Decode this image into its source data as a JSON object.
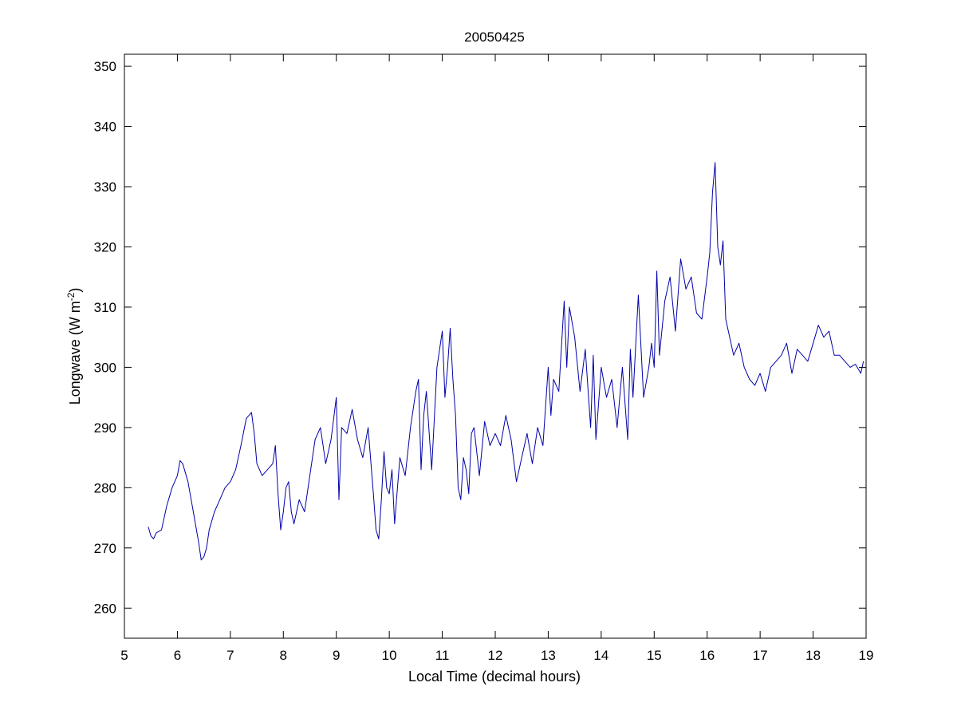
{
  "chart_data": {
    "type": "line",
    "title": "20050425",
    "xlabel": "Local Time (decimal hours)",
    "ylabel": "Longwave (W m",
    "ylabel_superscript": "-2",
    "ylabel_suffix": ")",
    "xlim": [
      5,
      19
    ],
    "ylim": [
      255,
      352
    ],
    "xticks": [
      "5",
      "6",
      "7",
      "8",
      "9",
      "10",
      "11",
      "12",
      "13",
      "14",
      "15",
      "16",
      "17",
      "18",
      "19"
    ],
    "yticks": [
      "260",
      "270",
      "280",
      "290",
      "300",
      "310",
      "320",
      "330",
      "340",
      "350"
    ],
    "grid": false,
    "line_color": "#0000aa",
    "series": [
      {
        "x": [
          5.45,
          5.5,
          5.55,
          5.6,
          5.7,
          5.8,
          5.9,
          6.0,
          6.05,
          6.1,
          6.2,
          6.3,
          6.4,
          6.45,
          6.5,
          6.55,
          6.6,
          6.7,
          6.8,
          6.9,
          7.0,
          7.1,
          7.2,
          7.3,
          7.35,
          7.4,
          7.45,
          7.5,
          7.6,
          7.7,
          7.8,
          7.85,
          7.9,
          7.95,
          8.0,
          8.05,
          8.1,
          8.15,
          8.2,
          8.3,
          8.4,
          8.5,
          8.6,
          8.7,
          8.8,
          8.9,
          9.0,
          9.05,
          9.1,
          9.2,
          9.3,
          9.4,
          9.5,
          9.6,
          9.7,
          9.75,
          9.8,
          9.85,
          9.9,
          9.95,
          10.0,
          10.05,
          10.1,
          10.2,
          10.3,
          10.4,
          10.5,
          10.55,
          10.6,
          10.65,
          10.7,
          10.8,
          10.9,
          11.0,
          11.05,
          11.1,
          11.15,
          11.2,
          11.25,
          11.3,
          11.35,
          11.4,
          11.45,
          11.5,
          11.55,
          11.6,
          11.7,
          11.8,
          11.9,
          12.0,
          12.1,
          12.2,
          12.3,
          12.4,
          12.5,
          12.6,
          12.7,
          12.8,
          12.9,
          13.0,
          13.05,
          13.1,
          13.2,
          13.3,
          13.35,
          13.4,
          13.5,
          13.6,
          13.7,
          13.8,
          13.85,
          13.9,
          14.0,
          14.1,
          14.2,
          14.3,
          14.4,
          14.5,
          14.55,
          14.6,
          14.7,
          14.8,
          14.9,
          14.95,
          15.0,
          15.05,
          15.1,
          15.2,
          15.3,
          15.4,
          15.5,
          15.6,
          15.7,
          15.8,
          15.9,
          16.0,
          16.05,
          16.1,
          16.15,
          16.2,
          16.25,
          16.3,
          16.35,
          16.4,
          16.5,
          16.6,
          16.7,
          16.8,
          16.9,
          17.0,
          17.1,
          17.2,
          17.3,
          17.4,
          17.5,
          17.6,
          17.7,
          17.8,
          17.9,
          18.0,
          18.1,
          18.2,
          18.3,
          18.4,
          18.5,
          18.6,
          18.7,
          18.8,
          18.9,
          18.95
        ],
        "y": [
          273.5,
          272,
          271.5,
          272.5,
          273,
          277,
          280,
          282,
          284.5,
          284,
          281,
          276,
          271,
          268,
          268.5,
          270,
          273,
          276,
          278,
          280,
          281,
          283,
          287,
          291.5,
          292,
          292.5,
          289,
          284,
          282,
          283,
          284,
          287,
          279,
          273,
          276,
          280,
          281,
          276,
          274,
          278,
          276,
          282,
          288,
          290,
          284,
          288,
          295,
          278,
          290,
          289,
          293,
          288,
          285,
          290,
          279,
          273,
          271.5,
          278,
          286,
          280,
          279,
          283,
          274,
          285,
          282,
          290,
          296,
          298,
          283,
          292,
          296,
          283,
          300,
          306,
          295,
          300,
          306.5,
          298,
          292,
          280,
          278,
          285,
          283,
          279,
          289,
          290,
          282,
          291,
          287,
          289,
          287,
          292,
          288,
          281,
          285,
          289,
          284,
          290,
          287,
          300,
          292,
          298,
          296,
          311,
          300,
          310,
          305,
          296,
          303,
          290,
          302,
          288,
          300,
          295,
          298,
          290,
          300,
          288,
          303,
          295,
          312,
          295,
          300,
          304,
          300,
          316,
          302,
          311,
          315,
          306,
          318,
          313,
          315,
          309,
          308,
          315,
          319,
          329,
          334,
          320,
          317,
          321,
          308,
          306,
          302,
          304,
          300,
          298,
          297,
          299,
          296,
          300,
          301,
          302,
          304,
          299,
          303,
          302,
          301,
          304,
          307,
          305,
          306,
          302,
          302,
          301,
          300,
          300.5,
          299,
          301
        ]
      }
    ]
  }
}
